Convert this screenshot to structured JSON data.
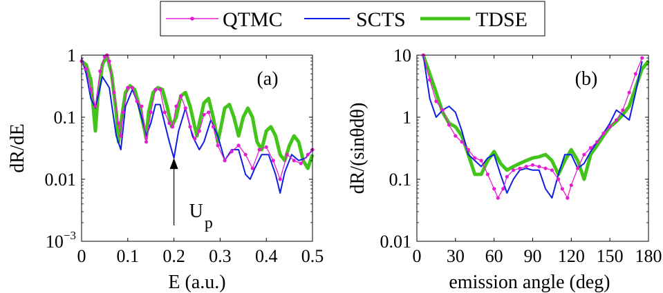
{
  "legend": {
    "entries": [
      {
        "name": "QTMC",
        "color": "#e81bd4",
        "marker": "dot"
      },
      {
        "name": "SCTS",
        "color": "#0c1ee0",
        "marker": "none"
      },
      {
        "name": "TDSE",
        "color": "#43c41a",
        "marker": "none"
      }
    ]
  },
  "chart_data": [
    {
      "type": "line",
      "panel_label": "(a)",
      "xlabel": "E (a.u.)",
      "ylabel": "dR/dE",
      "xlim": [
        0,
        0.5
      ],
      "ylim": [
        0.001,
        1
      ],
      "yscale": "log",
      "grid": false,
      "xticks": [
        0,
        0.1,
        0.2,
        0.3,
        0.4,
        0.5
      ],
      "xtick_labels": [
        "0",
        "0.1",
        "0.2",
        "0.3",
        "0.4",
        "0.5"
      ],
      "yticks": [
        0.001,
        0.01,
        0.1,
        1
      ],
      "ytick_labels": [
        {
          "base": "10",
          "exp": "−3"
        },
        {
          "text": "0.01"
        },
        {
          "text": "0.1"
        },
        {
          "text": "1"
        }
      ],
      "annotation": {
        "text": "U",
        "sub": "p",
        "x": 0.2,
        "arrow_from": 0.0018,
        "arrow_to": 0.022
      },
      "series": [
        {
          "name": "QTMC",
          "x": [
            0,
            0.01,
            0.02,
            0.03,
            0.04,
            0.05,
            0.055,
            0.06,
            0.07,
            0.08,
            0.085,
            0.09,
            0.1,
            0.11,
            0.12,
            0.13,
            0.14,
            0.15,
            0.16,
            0.17,
            0.18,
            0.19,
            0.197,
            0.205,
            0.215,
            0.225,
            0.235,
            0.245,
            0.255,
            0.265,
            0.275,
            0.285,
            0.295,
            0.31,
            0.325,
            0.34,
            0.355,
            0.37,
            0.385,
            0.4,
            0.415,
            0.43,
            0.445,
            0.46,
            0.475,
            0.49,
            0.5
          ],
          "y": [
            0.8,
            0.6,
            0.28,
            0.15,
            0.55,
            0.95,
            1.0,
            0.8,
            0.25,
            0.08,
            0.05,
            0.12,
            0.3,
            0.3,
            0.18,
            0.15,
            0.04,
            0.12,
            0.28,
            0.28,
            0.12,
            0.08,
            0.07,
            0.15,
            0.22,
            0.14,
            0.07,
            0.045,
            0.06,
            0.11,
            0.12,
            0.07,
            0.035,
            0.02,
            0.028,
            0.035,
            0.025,
            0.015,
            0.03,
            0.033,
            0.02,
            0.01,
            0.025,
            0.02,
            0.018,
            0.025,
            0.03
          ]
        },
        {
          "name": "SCTS",
          "x": [
            0,
            0.01,
            0.02,
            0.03,
            0.045,
            0.06,
            0.075,
            0.085,
            0.095,
            0.11,
            0.12,
            0.13,
            0.14,
            0.15,
            0.16,
            0.17,
            0.18,
            0.19,
            0.2,
            0.21,
            0.225,
            0.24,
            0.255,
            0.265,
            0.28,
            0.295,
            0.31,
            0.325,
            0.34,
            0.355,
            0.365,
            0.375,
            0.39,
            0.405,
            0.42,
            0.43,
            0.44,
            0.455,
            0.47,
            0.485,
            0.5
          ],
          "y": [
            0.9,
            0.5,
            0.2,
            0.14,
            0.45,
            0.3,
            0.05,
            0.03,
            0.15,
            0.28,
            0.18,
            0.1,
            0.05,
            0.08,
            0.16,
            0.16,
            0.08,
            0.04,
            0.022,
            0.06,
            0.14,
            0.05,
            0.03,
            0.04,
            0.09,
            0.05,
            0.02,
            0.03,
            0.03,
            0.012,
            0.01,
            0.015,
            0.025,
            0.025,
            0.012,
            0.006,
            0.013,
            0.025,
            0.02,
            0.022,
            0.03
          ]
        },
        {
          "name": "TDSE",
          "x": [
            0,
            0.01,
            0.02,
            0.025,
            0.03,
            0.035,
            0.045,
            0.055,
            0.065,
            0.075,
            0.08,
            0.085,
            0.095,
            0.105,
            0.115,
            0.125,
            0.135,
            0.14,
            0.145,
            0.155,
            0.165,
            0.175,
            0.185,
            0.195,
            0.205,
            0.215,
            0.225,
            0.235,
            0.245,
            0.25,
            0.255,
            0.265,
            0.275,
            0.285,
            0.295,
            0.3,
            0.31,
            0.32,
            0.33,
            0.34,
            0.35,
            0.36,
            0.37,
            0.38,
            0.39,
            0.4,
            0.41,
            0.42,
            0.43,
            0.44,
            0.45,
            0.46,
            0.47,
            0.48,
            0.49,
            0.5
          ],
          "y": [
            0.8,
            0.7,
            0.4,
            0.15,
            0.06,
            0.2,
            0.7,
            1.0,
            0.5,
            0.12,
            0.04,
            0.08,
            0.25,
            0.32,
            0.28,
            0.15,
            0.07,
            0.045,
            0.12,
            0.25,
            0.3,
            0.28,
            0.15,
            0.07,
            0.1,
            0.22,
            0.25,
            0.15,
            0.07,
            0.05,
            0.08,
            0.17,
            0.2,
            0.1,
            0.04,
            0.06,
            0.14,
            0.16,
            0.1,
            0.05,
            0.1,
            0.14,
            0.1,
            0.04,
            0.03,
            0.06,
            0.07,
            0.05,
            0.025,
            0.02,
            0.035,
            0.05,
            0.04,
            0.02,
            0.015,
            0.025
          ]
        }
      ]
    },
    {
      "type": "line",
      "panel_label": "(b)",
      "xlabel": "emission angle (deg)",
      "ylabel": "dR/(sinθdθ)",
      "xlim": [
        0,
        180
      ],
      "ylim": [
        0.01,
        10
      ],
      "yscale": "log",
      "grid": false,
      "xticks": [
        0,
        30,
        60,
        90,
        120,
        150,
        180
      ],
      "xtick_labels": [
        "0",
        "30",
        "60",
        "90",
        "120",
        "150",
        "180"
      ],
      "yticks": [
        0.01,
        0.1,
        1,
        10
      ],
      "ytick_labels": [
        {
          "text": "0.01"
        },
        {
          "text": "0.1"
        },
        {
          "text": "1"
        },
        {
          "text": "10"
        }
      ],
      "series": [
        {
          "name": "QTMC",
          "x": [
            5,
            10,
            15,
            20,
            25,
            30,
            35,
            40,
            45,
            50,
            55,
            60,
            63,
            67,
            70,
            75,
            80,
            85,
            90,
            95,
            100,
            105,
            110,
            113,
            117,
            120,
            125,
            130,
            135,
            140,
            145,
            150,
            155,
            160,
            165,
            170,
            175
          ],
          "y": [
            10,
            4,
            1.8,
            1.3,
            0.75,
            0.5,
            0.4,
            0.3,
            0.22,
            0.2,
            0.12,
            0.07,
            0.05,
            0.07,
            0.11,
            0.14,
            0.15,
            0.16,
            0.17,
            0.16,
            0.15,
            0.14,
            0.1,
            0.07,
            0.05,
            0.08,
            0.15,
            0.25,
            0.32,
            0.4,
            0.55,
            0.7,
            0.9,
            1.3,
            2.5,
            5,
            9
          ]
        },
        {
          "name": "SCTS",
          "x": [
            5,
            10,
            15,
            20,
            25,
            30,
            35,
            40,
            45,
            50,
            55,
            60,
            65,
            70,
            75,
            80,
            85,
            90,
            95,
            100,
            105,
            110,
            115,
            120,
            125,
            130,
            135,
            140,
            145,
            150,
            155,
            160,
            165,
            170,
            175
          ],
          "y": [
            10,
            2,
            1.0,
            1.3,
            1.5,
            1.2,
            0.6,
            0.25,
            0.2,
            0.16,
            0.22,
            0.25,
            0.12,
            0.06,
            0.1,
            0.14,
            0.15,
            0.14,
            0.14,
            0.07,
            0.05,
            0.12,
            0.25,
            0.25,
            0.15,
            0.18,
            0.28,
            0.4,
            0.55,
            0.8,
            1.3,
            1.1,
            0.9,
            2.5,
            8
          ]
        },
        {
          "name": "TDSE",
          "x": [
            5,
            10,
            15,
            20,
            25,
            30,
            35,
            40,
            45,
            50,
            55,
            60,
            65,
            70,
            75,
            80,
            85,
            90,
            95,
            100,
            105,
            110,
            115,
            120,
            125,
            130,
            135,
            140,
            145,
            150,
            155,
            160,
            165,
            170,
            175,
            180
          ],
          "y": [
            10,
            5,
            2.5,
            1.2,
            0.8,
            0.7,
            0.5,
            0.25,
            0.12,
            0.12,
            0.2,
            0.28,
            0.18,
            0.14,
            0.16,
            0.18,
            0.2,
            0.22,
            0.23,
            0.25,
            0.2,
            0.12,
            0.2,
            0.3,
            0.2,
            0.1,
            0.25,
            0.35,
            0.5,
            0.7,
            0.85,
            1.1,
            1.5,
            3,
            6,
            8
          ]
        }
      ]
    }
  ]
}
